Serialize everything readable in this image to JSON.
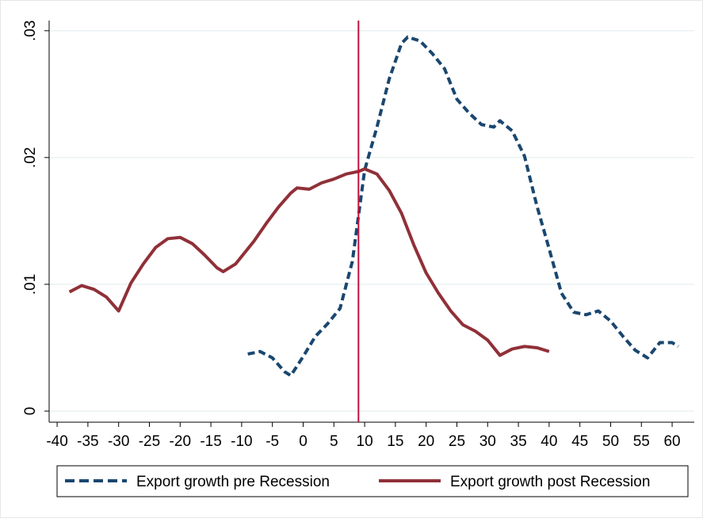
{
  "chart_data": {
    "type": "line",
    "xlim": [
      -41.3,
      63.6
    ],
    "ylim": [
      -0.000875,
      0.0308
    ],
    "xticks": [
      -40,
      -35,
      -30,
      -25,
      -20,
      -15,
      -10,
      -5,
      0,
      5,
      10,
      15,
      20,
      25,
      30,
      35,
      40,
      45,
      50,
      55,
      60
    ],
    "yticks": [
      0,
      {
        "value": 0.01,
        "label": ".01"
      },
      {
        "value": 0.02,
        "label": ".02"
      },
      {
        "value": 0.03,
        "label": ".03"
      }
    ],
    "grid": true,
    "vline": {
      "value": 9,
      "color": "#c0103c"
    },
    "legend": "bottom",
    "series": [
      {
        "name": "Export growth pre Recession",
        "color": "#1a476f",
        "dash": true,
        "x": [
          -9,
          -7,
          -5,
          -3,
          -2,
          0,
          2,
          4,
          6,
          8,
          10,
          12,
          14,
          16,
          17,
          19,
          21,
          23,
          25,
          27,
          29,
          31,
          32,
          34,
          36,
          38,
          40,
          42,
          44,
          46,
          48,
          50,
          52,
          54,
          56,
          58,
          60,
          61
        ],
        "values": [
          0.0045,
          0.0047,
          0.0042,
          0.0031,
          0.0028,
          0.0043,
          0.0059,
          0.0069,
          0.0081,
          0.0118,
          0.019,
          0.0224,
          0.0262,
          0.029,
          0.0295,
          0.0292,
          0.0282,
          0.027,
          0.0246,
          0.0235,
          0.0226,
          0.0224,
          0.0229,
          0.0221,
          0.0201,
          0.0162,
          0.0128,
          0.0093,
          0.0078,
          0.0076,
          0.0079,
          0.0071,
          0.0059,
          0.0048,
          0.0042,
          0.0054,
          0.0054,
          0.0051
        ]
      },
      {
        "name": "Export growth post Recession",
        "color": "#903038",
        "dash": false,
        "x": [
          -38,
          -36,
          -34,
          -32,
          -30,
          -28,
          -26,
          -24,
          -22,
          -20,
          -18,
          -16,
          -14,
          -13,
          -11,
          -8,
          -6,
          -4,
          -2,
          -1,
          1,
          3,
          5,
          7,
          9,
          10,
          12,
          14,
          16,
          18,
          20,
          22,
          24,
          26,
          28,
          30,
          32,
          34,
          36,
          38,
          40
        ],
        "values": [
          0.0094,
          0.0099,
          0.0096,
          0.009,
          0.0079,
          0.0101,
          0.0116,
          0.0129,
          0.0136,
          0.0137,
          0.0132,
          0.0123,
          0.0113,
          0.011,
          0.0116,
          0.0134,
          0.0148,
          0.0161,
          0.0172,
          0.0176,
          0.0175,
          0.018,
          0.0183,
          0.0187,
          0.0189,
          0.0191,
          0.0187,
          0.0174,
          0.0156,
          0.0131,
          0.0109,
          0.0093,
          0.0079,
          0.0068,
          0.0063,
          0.0056,
          0.0044,
          0.0049,
          0.0051,
          0.005,
          0.0047
        ]
      }
    ]
  }
}
